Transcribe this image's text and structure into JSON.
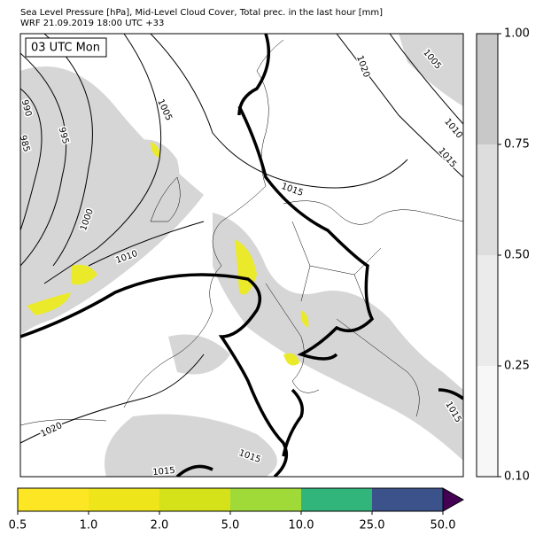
{
  "header": {
    "title": "Sea Level Pressure [hPa], Mid-Level Cloud Cover, Total prec. in the last hour [mm]",
    "subtitle": "WRF 21.09.2019 18:00 UTC +33"
  },
  "map": {
    "time_label": "03 UTC Mon",
    "contour_labels": [
      "990",
      "985",
      "995",
      "1000",
      "1005",
      "1010",
      "1015",
      "1020",
      "1005",
      "1010",
      "1015",
      "1020",
      "1015",
      "1015",
      "1015"
    ]
  },
  "cloud_colorbar": {
    "ticks": [
      "0.10",
      "0.25",
      "0.50",
      "0.75",
      "1.00"
    ],
    "colors": [
      "#f7f7f7",
      "#ebebeb",
      "#dddddd",
      "#c8c8c8"
    ]
  },
  "precip_colorbar": {
    "ticks": [
      "0.5",
      "1.0",
      "2.0",
      "5.0",
      "10.0",
      "25.0",
      "50.0"
    ],
    "colors": [
      "#fde725",
      "#eee51b",
      "#d5e21a",
      "#a0da39",
      "#31b57b",
      "#3b528b"
    ],
    "extend_color": "#440154"
  }
}
